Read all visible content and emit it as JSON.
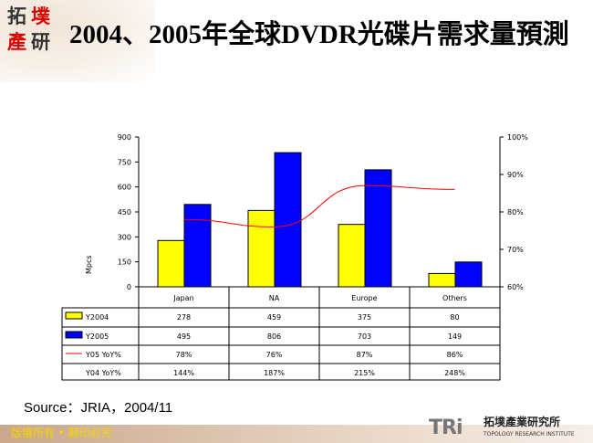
{
  "header": {
    "title": "2004、2005年全球DVDR光碟片需求量預測",
    "logo_text": [
      "拓",
      "墣",
      "產",
      "研"
    ]
  },
  "chart_data": {
    "type": "bar",
    "categories": [
      "Japan",
      "NA",
      "Europe",
      "Others"
    ],
    "ylabel": "Mpcs",
    "ylim": [
      0,
      900
    ],
    "yticks": [
      "0",
      "150",
      "300",
      "450",
      "600",
      "750",
      "900"
    ],
    "y2lim": [
      60,
      100
    ],
    "y2ticks": [
      "60%",
      "70%",
      "80%",
      "90%",
      "100%"
    ],
    "series": [
      {
        "name": "Y2004",
        "type": "bar",
        "color": "#ffff00",
        "values": [
          278,
          459,
          375,
          80
        ],
        "labels": [
          "278",
          "459",
          "375",
          "80"
        ]
      },
      {
        "name": "Y2005",
        "type": "bar",
        "color": "#0000ff",
        "values": [
          495,
          806,
          703,
          149
        ],
        "labels": [
          "495",
          "806",
          "703",
          "149"
        ]
      },
      {
        "name": "Y05 YoY%",
        "type": "line",
        "axis": "right",
        "color": "#ff0000",
        "values": [
          78,
          76,
          87,
          86
        ],
        "labels": [
          "78%",
          "76%",
          "87%",
          "86%"
        ]
      },
      {
        "name": "Y04 YoY%",
        "type": "table-only",
        "values": [
          144,
          187,
          215,
          248
        ],
        "labels": [
          "144%",
          "187%",
          "215%",
          "248%"
        ]
      }
    ],
    "grid": false,
    "legend": "data-table"
  },
  "source": "Source：JRIA，2004/11",
  "footer": {
    "copyright": "版權所有 • 翻印必究",
    "brand": "TRi",
    "org_name": "拓墣產業研究所",
    "org_en": "TOPOLOGY RESEARCH INSTITUTE"
  }
}
